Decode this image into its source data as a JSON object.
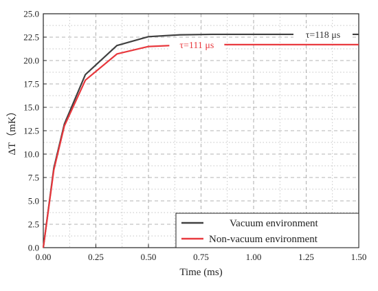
{
  "chart_data": {
    "type": "line",
    "xlabel": "Time (ms)",
    "ylabel": "ΔT（mK）",
    "xlim": [
      0,
      1.5
    ],
    "ylim": [
      0,
      25
    ],
    "x_ticks": [
      "0.00",
      "0.25",
      "0.50",
      "0.75",
      "1.00",
      "1.25",
      "1.50"
    ],
    "y_ticks": [
      "0.0",
      "2.5",
      "5.0",
      "7.5",
      "10.0",
      "12.5",
      "15.0",
      "17.5",
      "20.0",
      "22.5",
      "25.0"
    ],
    "grid": true,
    "legend_position": "bottom-right",
    "series": [
      {
        "name": "Vacuum environment",
        "color": "#404040",
        "annotation": "τ=118 μs",
        "x": [
          0,
          0.05,
          0.1,
          0.2,
          0.35,
          0.5,
          0.65,
          0.8,
          1.0,
          1.25,
          1.5
        ],
        "y": [
          0,
          8.5,
          13.2,
          18.5,
          21.6,
          22.55,
          22.75,
          22.8,
          22.8,
          22.8,
          22.8
        ]
      },
      {
        "name": "Non-vacuum environment",
        "color": "#e8383d",
        "annotation": "τ=111 μs",
        "x": [
          0,
          0.05,
          0.1,
          0.2,
          0.35,
          0.5,
          0.65,
          0.8,
          1.0,
          1.25,
          1.5
        ],
        "y": [
          0,
          8.3,
          13.0,
          17.9,
          20.7,
          21.5,
          21.65,
          21.7,
          21.7,
          21.7,
          21.7
        ]
      }
    ]
  }
}
